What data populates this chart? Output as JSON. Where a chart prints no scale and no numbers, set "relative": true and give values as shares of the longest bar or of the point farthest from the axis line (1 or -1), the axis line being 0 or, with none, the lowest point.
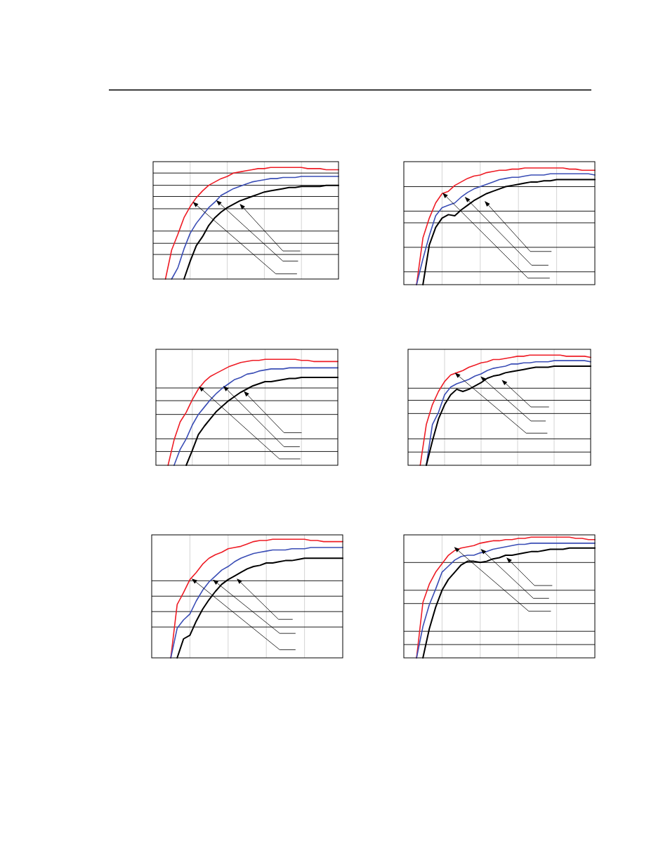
{
  "chart_data": [
    {
      "type": "line",
      "relative": true,
      "grid": "x",
      "categories": [
        null,
        null,
        null,
        null,
        null,
        null,
        null,
        null,
        null,
        null,
        null,
        null,
        null,
        null,
        null,
        null,
        null,
        null,
        null,
        null,
        null,
        null,
        null,
        null,
        null,
        null,
        null,
        null,
        null,
        null,
        null
      ],
      "ref_lines": [
        {
          "axis": "y",
          "value": 0.95,
          "color": "#000000"
        },
        {
          "axis": "y",
          "value": 0.84,
          "color": "#000000"
        },
        {
          "axis": "y",
          "value": 0.74,
          "color": "#000000"
        },
        {
          "axis": "y",
          "value": 0.63,
          "color": "#000000"
        },
        {
          "axis": "y",
          "value": 0.43,
          "color": "#000000"
        },
        {
          "axis": "y",
          "value": 0.32,
          "color": "#000000"
        },
        {
          "axis": "y",
          "value": 0.22,
          "color": "#000000"
        }
      ],
      "series": [
        {
          "color": "#ee1c25",
          "values": [
            null,
            null,
            0,
            0.26,
            0.4,
            0.55,
            0.65,
            0.73,
            0.79,
            0.84,
            0.87,
            0.9,
            0.92,
            0.95,
            0.96,
            0.97,
            0.98,
            0.99,
            0.99,
            1,
            1,
            1,
            1,
            1,
            1,
            0.99,
            0.99,
            0.99,
            0.98,
            0.98,
            0.98
          ]
        },
        {
          "color": "#3a4db5",
          "values": [
            null,
            null,
            null,
            0,
            0.1,
            0.27,
            0.41,
            0.5,
            0.57,
            0.64,
            0.69,
            0.75,
            0.78,
            0.81,
            0.83,
            0.85,
            0.87,
            0.88,
            0.89,
            0.9,
            0.9,
            0.91,
            0.91,
            0.91,
            0.92,
            0.92,
            0.92,
            0.92,
            0.92,
            0.92,
            0.92
          ]
        },
        {
          "color": "#000000",
          "values": [
            null,
            null,
            null,
            null,
            null,
            0,
            0.16,
            0.3,
            0.38,
            0.48,
            0.55,
            0.6,
            0.64,
            0.67,
            0.7,
            0.72,
            0.74,
            0.76,
            0.78,
            0.79,
            0.8,
            0.81,
            0.82,
            0.82,
            0.83,
            0.83,
            0.83,
            0.83,
            0.84,
            0.84,
            0.84
          ]
        }
      ]
    },
    {
      "type": "line",
      "relative": true,
      "grid": "x",
      "categories": [
        null,
        null,
        null,
        null,
        null,
        null,
        null,
        null,
        null,
        null,
        null,
        null,
        null,
        null,
        null,
        null,
        null,
        null,
        null,
        null,
        null,
        null,
        null,
        null,
        null,
        null,
        null,
        null,
        null,
        null,
        null
      ],
      "ref_lines": [
        {
          "axis": "y",
          "value": 0.84,
          "color": "#000000"
        },
        {
          "axis": "y",
          "value": 0.63,
          "color": "#000000"
        },
        {
          "axis": "y",
          "value": 0.53,
          "color": "#000000"
        },
        {
          "axis": "y",
          "value": 0.32,
          "color": "#000000"
        },
        {
          "axis": "y",
          "value": 0.11,
          "color": "#000000"
        }
      ],
      "series": [
        {
          "color": "#ee1c25",
          "values": [
            null,
            null,
            0,
            0.4,
            0.57,
            0.7,
            0.78,
            0.8,
            0.85,
            0.88,
            0.91,
            0.93,
            0.94,
            0.96,
            0.97,
            0.98,
            0.98,
            0.99,
            0.99,
            1,
            1,
            1,
            1,
            1,
            1,
            1,
            0.99,
            0.99,
            0.98,
            0.98,
            0.98
          ]
        },
        {
          "color": "#3a4db5",
          "values": [
            null,
            null,
            0,
            0.22,
            0.42,
            0.59,
            0.66,
            0.68,
            0.7,
            0.75,
            0.79,
            0.82,
            0.84,
            0.86,
            0.88,
            0.9,
            0.91,
            0.92,
            0.92,
            0.93,
            0.94,
            0.94,
            0.94,
            0.95,
            0.95,
            0.95,
            0.95,
            0.95,
            0.95,
            0.95,
            0.94
          ]
        },
        {
          "color": "#000000",
          "values": [
            null,
            null,
            null,
            0,
            0.34,
            0.49,
            0.57,
            0.6,
            0.59,
            0.64,
            0.68,
            0.72,
            0.75,
            0.78,
            0.8,
            0.82,
            0.84,
            0.85,
            0.86,
            0.87,
            0.88,
            0.88,
            0.89,
            0.89,
            0.9,
            0.9,
            0.9,
            0.9,
            0.9,
            0.9,
            0.9
          ]
        }
      ]
    },
    {
      "type": "line",
      "relative": true,
      "grid": "x",
      "categories": [
        null,
        null,
        null,
        null,
        null,
        null,
        null,
        null,
        null,
        null,
        null,
        null,
        null,
        null,
        null,
        null,
        null,
        null,
        null,
        null,
        null,
        null,
        null,
        null,
        null,
        null,
        null,
        null,
        null,
        null,
        null
      ],
      "ref_lines": [
        {
          "axis": "y",
          "value": 0.73,
          "color": "#000000"
        },
        {
          "axis": "y",
          "value": 0.61,
          "color": "#000000"
        },
        {
          "axis": "y",
          "value": 0.48,
          "color": "#000000"
        },
        {
          "axis": "y",
          "value": 0.25,
          "color": "#000000"
        },
        {
          "axis": "y",
          "value": 0.13,
          "color": "#000000"
        }
      ],
      "series": [
        {
          "color": "#ee1c25",
          "values": [
            null,
            null,
            0,
            0.24,
            0.41,
            0.5,
            0.62,
            0.72,
            0.79,
            0.84,
            0.87,
            0.9,
            0.93,
            0.95,
            0.97,
            0.98,
            0.99,
            0.99,
            1,
            1,
            1,
            1,
            1,
            1,
            0.99,
            0.99,
            0.98,
            0.98,
            0.98,
            0.98,
            0.98
          ]
        },
        {
          "color": "#3a4db5",
          "values": [
            null,
            null,
            null,
            0,
            0.15,
            0.25,
            0.38,
            0.48,
            0.55,
            0.62,
            0.68,
            0.73,
            0.77,
            0.81,
            0.83,
            0.86,
            0.87,
            0.89,
            0.9,
            0.91,
            0.91,
            0.91,
            0.92,
            0.92,
            0.92,
            0.92,
            0.92,
            0.92,
            0.92,
            0.92,
            0.92
          ]
        },
        {
          "color": "#000000",
          "values": [
            null,
            null,
            null,
            null,
            null,
            0,
            0.14,
            0.29,
            0.37,
            0.44,
            0.51,
            0.56,
            0.61,
            0.65,
            0.69,
            0.72,
            0.75,
            0.77,
            0.79,
            0.79,
            0.8,
            0.81,
            0.82,
            0.82,
            0.83,
            0.83,
            0.83,
            0.83,
            0.83,
            0.83,
            0.83
          ]
        }
      ]
    },
    {
      "type": "line",
      "relative": true,
      "grid": "x",
      "categories": [
        null,
        null,
        null,
        null,
        null,
        null,
        null,
        null,
        null,
        null,
        null,
        null,
        null,
        null,
        null,
        null,
        null,
        null,
        null,
        null,
        null,
        null,
        null,
        null,
        null,
        null,
        null,
        null,
        null,
        null,
        null
      ],
      "ref_lines": [
        {
          "axis": "y",
          "value": 0.7,
          "color": "#000000"
        },
        {
          "axis": "y",
          "value": 0.59,
          "color": "#000000"
        },
        {
          "axis": "y",
          "value": 0.47,
          "color": "#000000"
        },
        {
          "axis": "y",
          "value": 0.24,
          "color": "#000000"
        },
        {
          "axis": "y",
          "value": 0.12,
          "color": "#000000"
        }
      ],
      "series": [
        {
          "color": "#ee1c25",
          "values": [
            null,
            null,
            0,
            0.37,
            0.55,
            0.67,
            0.76,
            0.82,
            0.84,
            0.86,
            0.89,
            0.91,
            0.93,
            0.94,
            0.96,
            0.96,
            0.97,
            0.98,
            0.99,
            0.99,
            1,
            1,
            1,
            1,
            1,
            1,
            0.99,
            0.99,
            0.99,
            0.99,
            0.98
          ]
        },
        {
          "color": "#3a4db5",
          "values": [
            null,
            null,
            null,
            0,
            0.37,
            0.48,
            0.64,
            0.71,
            0.74,
            0.76,
            0.78,
            0.81,
            0.83,
            0.86,
            0.88,
            0.89,
            0.9,
            0.92,
            0.92,
            0.93,
            0.93,
            0.94,
            0.94,
            0.94,
            0.95,
            0.95,
            0.95,
            0.95,
            0.95,
            0.95,
            0.94
          ]
        },
        {
          "color": "#000000",
          "values": [
            null,
            null,
            null,
            0,
            0.22,
            0.42,
            0.55,
            0.64,
            0.69,
            0.67,
            0.69,
            0.72,
            0.75,
            0.79,
            0.81,
            0.82,
            0.84,
            0.85,
            0.86,
            0.87,
            0.88,
            0.89,
            0.89,
            0.89,
            0.9,
            0.9,
            0.9,
            0.9,
            0.9,
            0.9,
            0.9
          ]
        }
      ]
    },
    {
      "type": "line",
      "relative": true,
      "grid": "x",
      "categories": [
        null,
        null,
        null,
        null,
        null,
        null,
        null,
        null,
        null,
        null,
        null,
        null,
        null,
        null,
        null,
        null,
        null,
        null,
        null,
        null,
        null,
        null,
        null,
        null,
        null,
        null,
        null,
        null,
        null,
        null,
        null
      ],
      "ref_lines": [
        {
          "axis": "y",
          "value": 0.65,
          "color": "#000000"
        },
        {
          "axis": "y",
          "value": 0.52,
          "color": "#000000"
        },
        {
          "axis": "y",
          "value": 0.39,
          "color": "#000000"
        },
        {
          "axis": "y",
          "value": 0.26,
          "color": "#000000"
        }
      ],
      "series": [
        {
          "color": "#ee1c25",
          "values": [
            null,
            null,
            null,
            0,
            0.45,
            0.55,
            0.66,
            0.72,
            0.79,
            0.84,
            0.87,
            0.89,
            0.92,
            0.93,
            0.94,
            0.96,
            0.98,
            0.99,
            0.99,
            1,
            1,
            1,
            1,
            1,
            1,
            0.99,
            0.99,
            0.98,
            0.98,
            0.98,
            0.98
          ]
        },
        {
          "color": "#3a4db5",
          "values": [
            null,
            null,
            null,
            0,
            0.25,
            0.32,
            0.37,
            0.48,
            0.57,
            0.64,
            0.69,
            0.74,
            0.77,
            0.81,
            0.84,
            0.86,
            0.88,
            0.89,
            0.9,
            0.91,
            0.91,
            0.91,
            0.92,
            0.92,
            0.92,
            0.93,
            0.93,
            0.93,
            0.93,
            0.93,
            0.93
          ]
        },
        {
          "color": "#000000",
          "values": [
            null,
            null,
            null,
            null,
            0,
            0.16,
            0.19,
            0.31,
            0.41,
            0.49,
            0.56,
            0.62,
            0.66,
            0.69,
            0.72,
            0.75,
            0.77,
            0.78,
            0.8,
            0.8,
            0.81,
            0.82,
            0.82,
            0.83,
            0.84,
            0.84,
            0.84,
            0.84,
            0.84,
            0.84,
            0.84
          ]
        }
      ]
    },
    {
      "type": "line",
      "relative": true,
      "grid": "x",
      "categories": [
        null,
        null,
        null,
        null,
        null,
        null,
        null,
        null,
        null,
        null,
        null,
        null,
        null,
        null,
        null,
        null,
        null,
        null,
        null,
        null,
        null,
        null,
        null,
        null,
        null,
        null,
        null,
        null,
        null,
        null,
        null
      ],
      "ref_lines": [
        {
          "axis": "y",
          "value": 0.79,
          "color": "#000000"
        },
        {
          "axis": "y",
          "value": 0.56,
          "color": "#000000"
        },
        {
          "axis": "y",
          "value": 0.45,
          "color": "#000000"
        },
        {
          "axis": "y",
          "value": 0.22,
          "color": "#000000"
        },
        {
          "axis": "y",
          "value": 0.11,
          "color": "#000000"
        }
      ],
      "series": [
        {
          "color": "#ee1c25",
          "values": [
            null,
            null,
            0,
            0.46,
            0.61,
            0.71,
            0.78,
            0.85,
            0.89,
            0.91,
            0.92,
            0.93,
            0.95,
            0.96,
            0.97,
            0.97,
            0.98,
            0.98,
            0.99,
            0.99,
            1,
            1,
            1,
            1,
            1,
            1,
            1,
            0.99,
            0.99,
            0.98,
            0.98
          ]
        },
        {
          "color": "#3a4db5",
          "values": [
            null,
            null,
            0,
            0.26,
            0.44,
            0.57,
            0.71,
            0.76,
            0.81,
            0.84,
            0.85,
            0.85,
            0.87,
            0.88,
            0.9,
            0.91,
            0.92,
            0.93,
            0.94,
            0.94,
            0.95,
            0.95,
            0.95,
            0.95,
            0.95,
            0.95,
            0.95,
            0.95,
            0.95,
            0.95,
            0.95
          ]
        },
        {
          "color": "#000000",
          "values": [
            null,
            null,
            null,
            0,
            0.24,
            0.42,
            0.56,
            0.65,
            0.71,
            0.77,
            0.8,
            0.8,
            0.79,
            0.8,
            0.82,
            0.83,
            0.85,
            0.85,
            0.86,
            0.87,
            0.88,
            0.88,
            0.89,
            0.9,
            0.9,
            0.9,
            0.91,
            0.91,
            0.91,
            0.91,
            0.91
          ]
        }
      ]
    }
  ]
}
